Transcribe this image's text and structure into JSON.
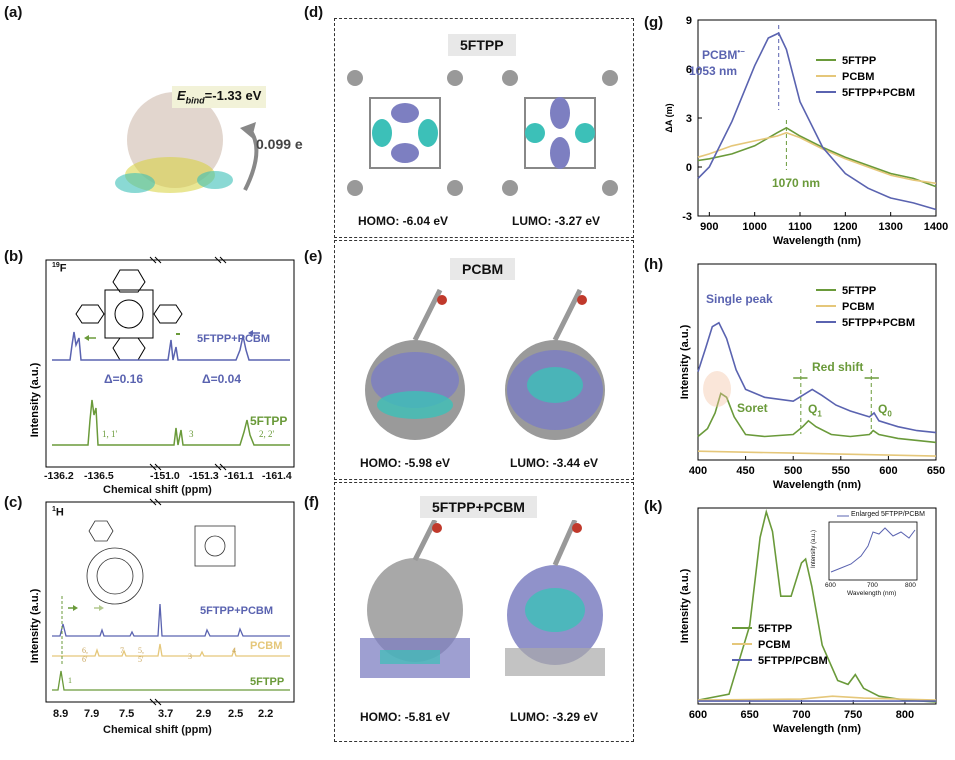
{
  "panels": {
    "a": {
      "label": "(a)",
      "ebind_prefix": "E",
      "ebind_sub": "bind",
      "ebind_value": "=-1.33 eV",
      "charge": "0.099 e"
    },
    "b": {
      "label": "(b)",
      "nucleus": "19F",
      "ylabel": "Intensity (a.u.)",
      "xlabel": "Chemical shift (ppm)",
      "ticks": [
        "-136.2",
        "-136.5",
        "-151.0",
        "-151.3",
        "-161.1",
        "-161.4"
      ],
      "trace_top": "5FTPP+PCBM",
      "trace_bottom": "5FTPP",
      "delta1": "Δ=0.16",
      "delta2": "Δ=0.04",
      "peak_labels": [
        "1, 1'",
        "3",
        "2, 2'"
      ]
    },
    "c": {
      "label": "(c)",
      "nucleus": "1H",
      "ylabel": "Intensity (a.u.)",
      "xlabel": "Chemical shift (ppm)",
      "ticks": [
        "8.9",
        "7.9",
        "7.5",
        "3.7",
        "2.9",
        "2.5",
        "2.2"
      ],
      "traces": [
        "5FTPP+PCBM",
        "PCBM",
        "5FTPP"
      ],
      "peak_labels": [
        "6, 6'",
        "7",
        "5, 5'",
        "3",
        "4",
        "1"
      ]
    },
    "d": {
      "label": "(d)",
      "title": "5FTPP",
      "homo": "HOMO: -6.04 eV",
      "lumo": "LUMO: -3.27 eV"
    },
    "e": {
      "label": "(e)",
      "title": "PCBM",
      "homo": "HOMO: -5.98 eV",
      "lumo": "LUMO: -3.44 eV"
    },
    "f": {
      "label": "(f)",
      "title": "5FTPP+PCBM",
      "homo": "HOMO: -5.81 eV",
      "lumo": "LUMO: -3.29 eV"
    },
    "g": {
      "label": "(g)",
      "annot1_line1": "PCBM",
      "annot1_line2": "1053 nm",
      "annot2": "1070 nm",
      "legend": [
        "5FTPP",
        "PCBM",
        "5FTPP+PCBM"
      ]
    },
    "h": {
      "label": "(h)",
      "annot_single": "Single peak",
      "annot_red": "Red shift",
      "annot_soret": "Soret",
      "annot_q1": "Q",
      "annot_q0": "Q",
      "legend": [
        "5FTPP",
        "PCBM",
        "5FTPP+PCBM"
      ]
    },
    "k": {
      "label": "(k)",
      "legend": [
        "5FTPP",
        "PCBM",
        "5FTPP/PCBM"
      ],
      "inset_legend": "Enlarged 5FTPP/PCBM",
      "inset_ylabel": "Intensity (a.u.)",
      "inset_xlabel": "Wavelength (nm)",
      "inset_ticks": [
        "600",
        "700",
        "800"
      ]
    }
  },
  "colors": {
    "green": "#6a9a3a",
    "yellow": "#e5c77a",
    "blue": "#5a63b0"
  },
  "chart_data": [
    {
      "id": "g",
      "type": "line",
      "xlabel": "Wavelength (nm)",
      "ylabel": "ΔA (m)",
      "xlim": [
        875,
        1400
      ],
      "ylim": [
        -3,
        9
      ],
      "xticks": [
        900,
        1000,
        1100,
        1200,
        1300,
        1400
      ],
      "yticks": [
        -3,
        0,
        3,
        6,
        9
      ],
      "series": [
        {
          "name": "5FTPP",
          "color": "#6a9a3a",
          "x": [
            875,
            900,
            950,
            1000,
            1050,
            1070,
            1100,
            1150,
            1200,
            1250,
            1300,
            1350,
            1400
          ],
          "y": [
            0.4,
            0.5,
            0.8,
            1.3,
            2.1,
            2.4,
            1.9,
            1.2,
            0.6,
            0.1,
            -0.4,
            -0.7,
            -1.2
          ]
        },
        {
          "name": "PCBM",
          "color": "#e5c77a",
          "x": [
            875,
            900,
            950,
            1000,
            1050,
            1070,
            1100,
            1150,
            1200,
            1250,
            1300,
            1350,
            1400
          ],
          "y": [
            0.6,
            0.8,
            1.3,
            1.6,
            1.9,
            2.1,
            1.8,
            1.1,
            0.5,
            0.0,
            -0.5,
            -0.8,
            -1.0
          ]
        },
        {
          "name": "5FTPP+PCBM",
          "color": "#5a63b0",
          "x": [
            875,
            900,
            950,
            1000,
            1030,
            1053,
            1070,
            1100,
            1150,
            1200,
            1250,
            1300,
            1350,
            1400
          ],
          "y": [
            -0.7,
            0.0,
            2.8,
            6.2,
            7.9,
            8.2,
            7.2,
            4.0,
            1.2,
            -0.4,
            -1.3,
            -1.9,
            -2.2,
            -2.6
          ]
        }
      ]
    },
    {
      "id": "h",
      "type": "line",
      "xlabel": "Wavelength (nm)",
      "ylabel": "Intensity (a.u.)",
      "xlim": [
        400,
        650
      ],
      "ylim": [
        0,
        1
      ],
      "xticks": [
        400,
        450,
        500,
        550,
        600,
        650
      ],
      "series": [
        {
          "name": "5FTPP",
          "color": "#6a9a3a",
          "x": [
            400,
            410,
            418,
            424,
            430,
            438,
            450,
            470,
            500,
            510,
            516,
            524,
            540,
            560,
            580,
            584,
            590,
            610,
            630,
            650
          ],
          "y": [
            0.12,
            0.16,
            0.24,
            0.34,
            0.32,
            0.22,
            0.13,
            0.12,
            0.13,
            0.17,
            0.2,
            0.17,
            0.13,
            0.12,
            0.13,
            0.15,
            0.13,
            0.11,
            0.1,
            0.09
          ]
        },
        {
          "name": "PCBM",
          "color": "#e5c77a",
          "x": [
            400,
            450,
            500,
            550,
            600,
            650
          ],
          "y": [
            0.045,
            0.04,
            0.035,
            0.03,
            0.025,
            0.02
          ]
        },
        {
          "name": "5FTPP+PCBM",
          "color": "#5a63b0",
          "x": [
            400,
            408,
            415,
            422,
            430,
            440,
            450,
            470,
            500,
            510,
            520,
            530,
            545,
            560,
            580,
            585,
            590,
            610,
            630,
            650
          ],
          "y": [
            0.45,
            0.57,
            0.68,
            0.7,
            0.62,
            0.46,
            0.36,
            0.32,
            0.3,
            0.33,
            0.36,
            0.33,
            0.28,
            0.25,
            0.22,
            0.24,
            0.2,
            0.17,
            0.15,
            0.14
          ]
        }
      ]
    },
    {
      "id": "k",
      "type": "line",
      "xlabel": "Wavelength (nm)",
      "ylabel": "Intensity (a.u.)",
      "xlim": [
        600,
        830
      ],
      "ylim": [
        0,
        1
      ],
      "xticks": [
        600,
        650,
        700,
        750,
        800
      ],
      "series": [
        {
          "name": "5FTPP",
          "color": "#6a9a3a",
          "x": [
            600,
            630,
            650,
            660,
            666,
            672,
            680,
            690,
            700,
            704,
            710,
            720,
            735,
            745,
            752,
            760,
            775,
            800,
            830
          ],
          "y": [
            0.02,
            0.05,
            0.4,
            0.85,
            0.98,
            0.88,
            0.55,
            0.55,
            0.72,
            0.74,
            0.6,
            0.3,
            0.12,
            0.1,
            0.15,
            0.08,
            0.04,
            0.02,
            0.01
          ]
        },
        {
          "name": "PCBM",
          "color": "#e5c77a",
          "x": [
            600,
            700,
            730,
            760,
            830
          ],
          "y": [
            0.02,
            0.025,
            0.04,
            0.03,
            0.02
          ]
        },
        {
          "name": "5FTPP/PCBM",
          "color": "#5a63b0",
          "x": [
            600,
            830
          ],
          "y": [
            0.015,
            0.015
          ]
        }
      ]
    }
  ]
}
